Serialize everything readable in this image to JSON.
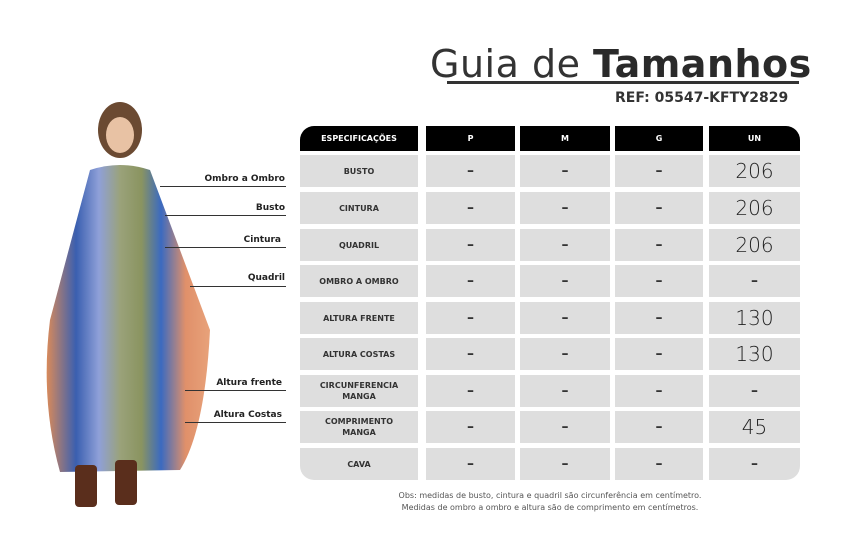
{
  "header": {
    "title_light": "Guia de ",
    "title_bold": "Tamanhos",
    "ref": "REF: 05547-KFTY2829"
  },
  "table": {
    "columns": [
      "ESPECIFICAÇÕES",
      "P",
      "M",
      "G",
      "UN"
    ],
    "rows": [
      {
        "spec": "BUSTO",
        "values": [
          "–",
          "–",
          "–",
          "206"
        ]
      },
      {
        "spec": "CINTURA",
        "values": [
          "–",
          "–",
          "–",
          "206"
        ]
      },
      {
        "spec": "QUADRIL",
        "values": [
          "–",
          "–",
          "–",
          "206"
        ]
      },
      {
        "spec": "OMBRO A OMBRO",
        "values": [
          "–",
          "–",
          "–",
          "–"
        ]
      },
      {
        "spec": "ALTURA FRENTE",
        "values": [
          "–",
          "–",
          "–",
          "130"
        ]
      },
      {
        "spec": "ALTURA COSTAS",
        "values": [
          "–",
          "–",
          "–",
          "130"
        ]
      },
      {
        "spec": "CIRCUNFERENCIA MANGA",
        "values": [
          "–",
          "–",
          "–",
          "–"
        ]
      },
      {
        "spec": "COMPRIMENTO MANGA",
        "values": [
          "–",
          "–",
          "–",
          "45"
        ]
      },
      {
        "spec": "CAVA",
        "values": [
          "–",
          "–",
          "–",
          "–"
        ]
      }
    ]
  },
  "note": [
    "Obs: medidas de busto, cintura e quadril são circunferência em centímetro.",
    "Medidas de ombro a ombro e altura são de comprimento em centímetros."
  ],
  "figure_labels": [
    "Ombro a Ombro",
    "Busto",
    "Cintura",
    "Quadril",
    "Altura frente",
    "Altura Costas"
  ]
}
